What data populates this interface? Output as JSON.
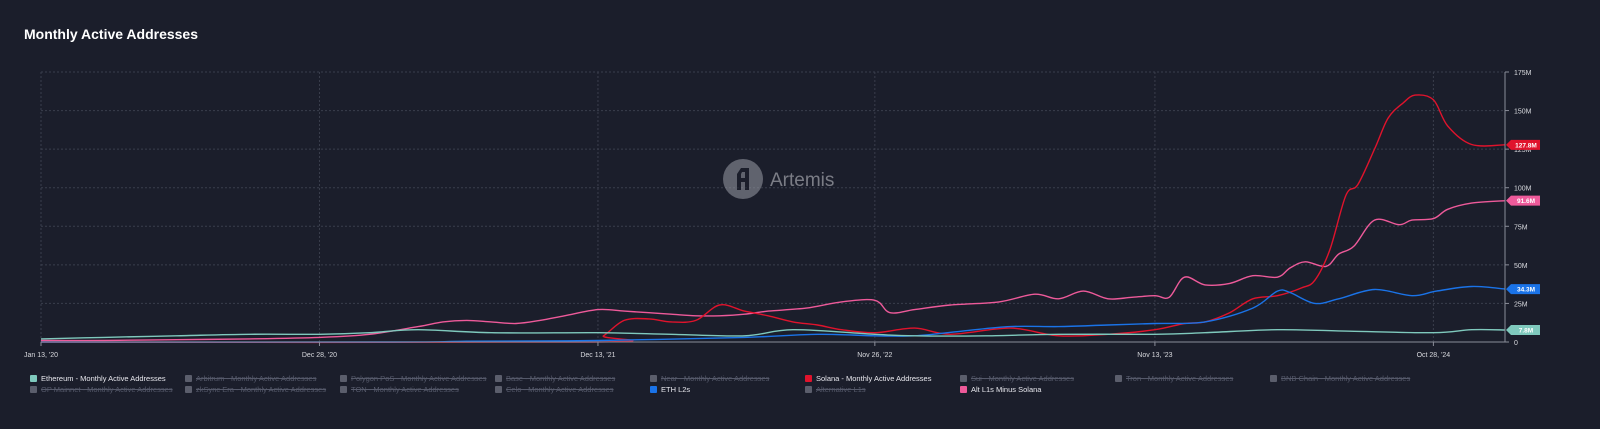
{
  "page": {
    "title": "Monthly Active Addresses"
  },
  "watermark": {
    "text": "Artemis"
  },
  "colors": {
    "background": "#1b1e2b",
    "grid": "#3a3e4c",
    "ethereum": "#7fc9bd",
    "solana": "#e0132c",
    "eth_l2s": "#1a73e8",
    "alt_l1s": "#ee5a9a",
    "disabled": "#5b5e6c"
  },
  "legend": [
    {
      "label": "Ethereum - Monthly Active Addresses",
      "color": "#7fc9bd",
      "active": true
    },
    {
      "label": "Arbitrum - Monthly Active Addresses",
      "color": "#5b5e6c",
      "active": false
    },
    {
      "label": "Polygon PoS - Monthly Active Addresses",
      "color": "#5b5e6c",
      "active": false
    },
    {
      "label": "Base - Monthly Active Addresses",
      "color": "#5b5e6c",
      "active": false
    },
    {
      "label": "Near - Monthly Active Addresses",
      "color": "#5b5e6c",
      "active": false
    },
    {
      "label": "Solana - Monthly Active Addresses",
      "color": "#e0132c",
      "active": true
    },
    {
      "label": "Sui - Monthly Active Addresses",
      "color": "#5b5e6c",
      "active": false
    },
    {
      "label": "Tron - Monthly Active Addresses",
      "color": "#5b5e6c",
      "active": false
    },
    {
      "label": "BNB Chain - Monthly Active Addresses",
      "color": "#5b5e6c",
      "active": false
    },
    {
      "label": "OP Mainnet - Monthly Active Addresses",
      "color": "#5b5e6c",
      "active": false
    },
    {
      "label": "zkSync Era - Monthly Active Addresses",
      "color": "#5b5e6c",
      "active": false
    },
    {
      "label": "TON - Monthly Active Addresses",
      "color": "#5b5e6c",
      "active": false
    },
    {
      "label": "Celo - Monthly Active Addresses",
      "color": "#5b5e6c",
      "active": false
    },
    {
      "label": "ETH L2s",
      "color": "#1a73e8",
      "active": true
    },
    {
      "label": "Alternative L1s",
      "color": "#5b5e6c",
      "active": false
    },
    {
      "label": "Alt L1s Minus Solana",
      "color": "#ee5a9a",
      "active": true
    }
  ],
  "chart_data": {
    "type": "line",
    "title": "Monthly Active Addresses",
    "x_ticks": [
      "Jan 13, '20",
      "Dec 28, '20",
      "Dec 13, '21",
      "Nov 26, '22",
      "Nov 13, '23",
      "Oct 28, '24"
    ],
    "x_range": [
      "2020-01-13",
      "2025-01-26"
    ],
    "y_ticks": [
      "0",
      "25M",
      "50M",
      "75M",
      "100M",
      "125M",
      "150M",
      "175M"
    ],
    "ylim": [
      0,
      175
    ],
    "y_unit": "M",
    "grid": true,
    "legend_position": "bottom",
    "end_labels": [
      {
        "series": "Solana - Monthly Active Addresses",
        "text": "127.8M"
      },
      {
        "series": "Alt L1s Minus Solana",
        "text": "91.6M"
      },
      {
        "series": "ETH L2s",
        "text": "34.3M"
      },
      {
        "series": "Ethereum - Monthly Active Addresses",
        "text": "7.8M"
      }
    ],
    "series": [
      {
        "name": "Alt L1s Minus Solana",
        "color": "#ee5a9a",
        "points": [
          [
            "2020-01-13",
            1
          ],
          [
            "2020-04-01",
            1
          ],
          [
            "2020-07-01",
            1.5
          ],
          [
            "2020-10-01",
            2
          ],
          [
            "2020-12-28",
            3
          ],
          [
            "2021-03-01",
            5
          ],
          [
            "2021-05-01",
            10
          ],
          [
            "2021-06-01",
            13
          ],
          [
            "2021-07-01",
            14
          ],
          [
            "2021-08-01",
            13
          ],
          [
            "2021-09-01",
            12
          ],
          [
            "2021-10-01",
            14
          ],
          [
            "2021-11-01",
            17
          ],
          [
            "2021-12-13",
            21
          ],
          [
            "2022-01-15",
            20
          ],
          [
            "2022-02-15",
            19
          ],
          [
            "2022-03-15",
            18
          ],
          [
            "2022-04-15",
            17
          ],
          [
            "2022-05-15",
            17
          ],
          [
            "2022-06-15",
            18
          ],
          [
            "2022-07-15",
            20
          ],
          [
            "2022-09-01",
            22
          ],
          [
            "2022-10-15",
            26
          ],
          [
            "2022-11-26",
            27
          ],
          [
            "2022-12-15",
            19
          ],
          [
            "2023-01-15",
            21
          ],
          [
            "2023-03-01",
            24
          ],
          [
            "2023-05-01",
            26
          ],
          [
            "2023-06-15",
            31
          ],
          [
            "2023-07-15",
            28
          ],
          [
            "2023-08-15",
            33
          ],
          [
            "2023-09-15",
            28
          ],
          [
            "2023-10-15",
            29
          ],
          [
            "2023-11-13",
            30
          ],
          [
            "2023-12-01",
            29
          ],
          [
            "2023-12-20",
            42
          ],
          [
            "2024-01-15",
            37
          ],
          [
            "2024-02-15",
            38
          ],
          [
            "2024-03-15",
            43
          ],
          [
            "2024-04-15",
            42
          ],
          [
            "2024-05-01",
            48
          ],
          [
            "2024-05-20",
            52
          ],
          [
            "2024-06-15",
            49
          ],
          [
            "2024-07-01",
            57
          ],
          [
            "2024-07-20",
            62
          ],
          [
            "2024-08-15",
            79
          ],
          [
            "2024-09-15",
            76
          ],
          [
            "2024-10-01",
            79
          ],
          [
            "2024-10-28",
            80
          ],
          [
            "2024-11-15",
            86
          ],
          [
            "2024-12-15",
            90
          ],
          [
            "2025-01-26",
            91.6
          ]
        ]
      },
      {
        "name": "Solana - Monthly Active Addresses",
        "color": "#e0132c",
        "points": [
          [
            "2020-01-13",
            0
          ],
          [
            "2021-12-01",
            0
          ],
          [
            "2021-12-20",
            4
          ],
          [
            "2022-01-15",
            14
          ],
          [
            "2022-02-15",
            15
          ],
          [
            "2022-03-15",
            13
          ],
          [
            "2022-04-15",
            14
          ],
          [
            "2022-05-15",
            24
          ],
          [
            "2022-06-15",
            20
          ],
          [
            "2022-07-15",
            17
          ],
          [
            "2022-08-15",
            13
          ],
          [
            "2022-09-15",
            11
          ],
          [
            "2022-10-15",
            8
          ],
          [
            "2022-11-26",
            6
          ],
          [
            "2023-01-15",
            9
          ],
          [
            "2023-03-01",
            5
          ],
          [
            "2023-05-15",
            9
          ],
          [
            "2023-07-15",
            4
          ],
          [
            "2023-09-15",
            5
          ],
          [
            "2023-11-13",
            8
          ],
          [
            "2023-12-20",
            12
          ],
          [
            "2024-01-15",
            13
          ],
          [
            "2024-02-15",
            19
          ],
          [
            "2024-03-15",
            28
          ],
          [
            "2024-04-15",
            30
          ],
          [
            "2024-05-15",
            35
          ],
          [
            "2024-06-01",
            40
          ],
          [
            "2024-06-20",
            60
          ],
          [
            "2024-07-10",
            95
          ],
          [
            "2024-07-25",
            102
          ],
          [
            "2024-08-15",
            125
          ],
          [
            "2024-09-01",
            145
          ],
          [
            "2024-09-20",
            155
          ],
          [
            "2024-10-05",
            160
          ],
          [
            "2024-10-28",
            157
          ],
          [
            "2024-11-15",
            140
          ],
          [
            "2024-12-15",
            128
          ],
          [
            "2025-01-26",
            127.8
          ]
        ]
      },
      {
        "name": "ETH L2s",
        "color": "#1a73e8",
        "points": [
          [
            "2020-01-13",
            0
          ],
          [
            "2021-04-01",
            0
          ],
          [
            "2021-07-01",
            0.5
          ],
          [
            "2021-12-13",
            1
          ],
          [
            "2022-06-15",
            3
          ],
          [
            "2022-09-15",
            5
          ],
          [
            "2022-11-26",
            4
          ],
          [
            "2023-01-15",
            4
          ],
          [
            "2023-03-15",
            7
          ],
          [
            "2023-05-15",
            10
          ],
          [
            "2023-07-15",
            10
          ],
          [
            "2023-09-15",
            11
          ],
          [
            "2023-11-13",
            12
          ],
          [
            "2024-01-15",
            13
          ],
          [
            "2024-03-15",
            22
          ],
          [
            "2024-04-15",
            33
          ],
          [
            "2024-05-01",
            32
          ],
          [
            "2024-06-01",
            25
          ],
          [
            "2024-07-01",
            28
          ],
          [
            "2024-08-15",
            34
          ],
          [
            "2024-10-01",
            30
          ],
          [
            "2024-11-01",
            33
          ],
          [
            "2024-12-15",
            36
          ],
          [
            "2025-01-26",
            34.3
          ]
        ]
      },
      {
        "name": "Ethereum - Monthly Active Addresses",
        "color": "#7fc9bd",
        "points": [
          [
            "2020-01-13",
            2
          ],
          [
            "2020-04-01",
            3
          ],
          [
            "2020-07-01",
            4
          ],
          [
            "2020-10-01",
            5
          ],
          [
            "2020-12-28",
            5
          ],
          [
            "2021-03-01",
            6
          ],
          [
            "2021-05-01",
            8
          ],
          [
            "2021-08-01",
            6
          ],
          [
            "2021-12-13",
            6
          ],
          [
            "2022-03-15",
            5
          ],
          [
            "2022-06-15",
            4
          ],
          [
            "2022-08-15",
            8
          ],
          [
            "2022-11-26",
            5
          ],
          [
            "2023-01-15",
            4
          ],
          [
            "2023-04-15",
            4
          ],
          [
            "2023-07-15",
            5
          ],
          [
            "2023-11-13",
            5
          ],
          [
            "2024-01-15",
            6
          ],
          [
            "2024-04-15",
            8
          ],
          [
            "2024-07-15",
            7
          ],
          [
            "2024-10-28",
            6
          ],
          [
            "2024-12-15",
            8
          ],
          [
            "2025-01-26",
            7.8
          ]
        ]
      }
    ]
  }
}
